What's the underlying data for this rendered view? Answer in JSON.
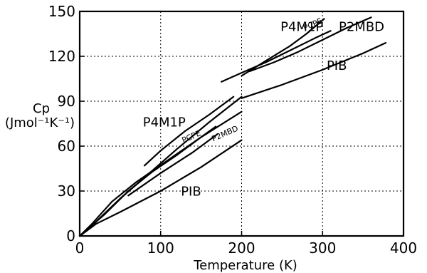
{
  "chart_data": {
    "type": "line",
    "title": "",
    "xlabel": "Temperature (K)",
    "ylabel_line1": "Cp",
    "ylabel_line2": "(Jmol⁻¹K⁻¹)",
    "xlim": [
      0,
      400
    ],
    "ylim": [
      0,
      150
    ],
    "xticks": [
      0,
      100,
      200,
      300,
      400
    ],
    "yticks": [
      0,
      30,
      60,
      90,
      120,
      150
    ],
    "xtick_labels": [
      "0",
      "100",
      "200",
      "300",
      "400"
    ],
    "ytick_labels": [
      "0",
      "30",
      "60",
      "90",
      "120",
      "150"
    ],
    "grid": true,
    "series": [
      {
        "name": "P4M1P",
        "label_x": 78,
        "label_y": 73,
        "small": false,
        "x": [
          80,
          100,
          130,
          160,
          190
        ],
        "y": [
          47,
          57,
          70,
          81,
          93
        ]
      },
      {
        "name": "PCPE",
        "label_x": 128,
        "label_y": 62,
        "small": true,
        "x": [
          0,
          30,
          60,
          90,
          120,
          150,
          168
        ],
        "y": [
          0,
          14,
          30,
          43,
          54,
          66,
          73
        ]
      },
      {
        "name": "P2MBD",
        "label_x": 165,
        "label_y": 63,
        "small": true,
        "x": [
          60,
          100,
          140,
          170
        ],
        "y": [
          27,
          42,
          56,
          68
        ]
      },
      {
        "name": "PIB",
        "label_x": 125,
        "label_y": 27,
        "small": false,
        "x": [
          0,
          20,
          50,
          100,
          150,
          200
        ],
        "y": [
          0,
          8,
          16,
          30,
          46,
          64
        ]
      },
      {
        "name": "PIB",
        "label_x": 305,
        "label_y": 111,
        "small": false,
        "x": [
          200,
          250,
          300,
          350,
          378
        ],
        "y": [
          92,
          101,
          111,
          122,
          129
        ]
      },
      {
        "name": "P4M1P",
        "label_x": 248,
        "label_y": 137,
        "small": false,
        "x": [
          200,
          230,
          260,
          280,
          302
        ],
        "y": [
          107,
          117,
          127,
          135,
          145
        ]
      },
      {
        "name": "PCPE",
        "label_x": 278,
        "label_y": 137,
        "small": true,
        "x": [
          175,
          200,
          230,
          260,
          290,
          310
        ],
        "y": [
          103,
          109,
          116,
          124,
          132,
          137
        ]
      },
      {
        "name": "P2MBD",
        "label_x": 320,
        "label_y": 137,
        "small": false,
        "x": [
          210,
          240,
          270,
          300,
          330,
          360
        ],
        "y": [
          110,
          116,
          123,
          131,
          139,
          146
        ]
      }
    ],
    "extra_lines": [
      {
        "x": [
          0,
          10,
          25,
          50,
          80,
          120,
          160,
          200
        ],
        "y": [
          0,
          4,
          12,
          25,
          39,
          58,
          76,
          93
        ]
      },
      {
        "x": [
          0,
          15,
          40,
          70,
          110,
          150,
          200
        ],
        "y": [
          0,
          8,
          23,
          36,
          51,
          66,
          83
        ]
      }
    ]
  }
}
